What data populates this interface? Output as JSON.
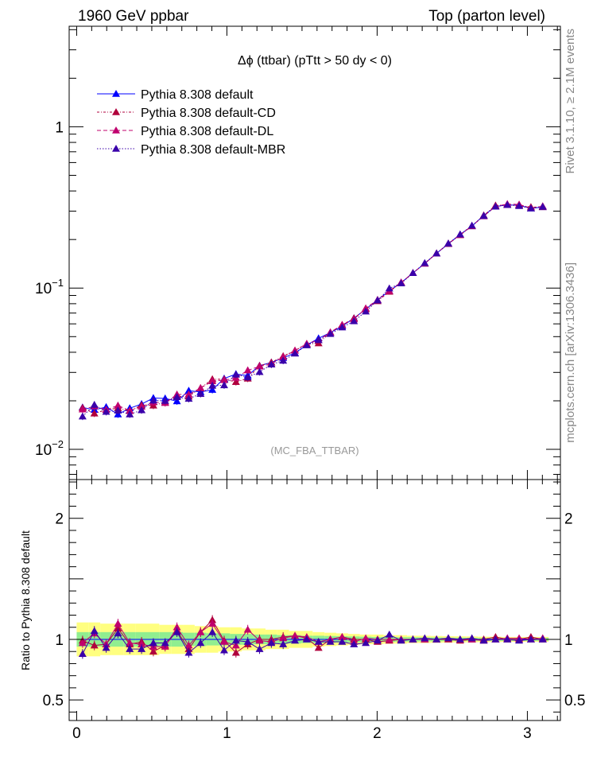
{
  "header": {
    "left": "1960 GeV ppbar",
    "right": "Top (parton level)"
  },
  "side_labels": {
    "rivet": "Rivet 3.1.10, ≥ 2.1M events",
    "mcplots": "mcplots.cern.ch [arXiv:1306.3436]"
  },
  "chart_data": [
    {
      "type": "line",
      "title": "Δϕ (ttbar) (pTtt > 50 dy < 0)",
      "watermark": "(MC_FBA_TTBAR)",
      "yscale": "log",
      "xlim": [
        -0.05,
        3.22
      ],
      "ylim": [
        0.0065,
        4.2
      ],
      "yticks": [
        {
          "v": 0.01,
          "base": "10",
          "exp": "−2"
        },
        {
          "v": 0.1,
          "base": "10",
          "exp": "−1"
        },
        {
          "v": 1,
          "base": "1",
          "exp": ""
        }
      ],
      "legend_position": "top-left",
      "x": [
        0.0393,
        0.1178,
        0.1963,
        0.2749,
        0.3534,
        0.432,
        0.5105,
        0.589,
        0.6676,
        0.7461,
        0.8247,
        0.9032,
        0.9817,
        1.0603,
        1.1388,
        1.2174,
        1.2959,
        1.3744,
        1.453,
        1.5315,
        1.6101,
        1.6886,
        1.7671,
        1.8457,
        1.9242,
        2.0028,
        2.0813,
        2.1598,
        2.2384,
        2.3169,
        2.3955,
        2.474,
        2.5525,
        2.6311,
        2.7096,
        2.7882,
        2.8667,
        2.9452,
        3.0238,
        3.1023
      ],
      "series": [
        {
          "name": "Pythia 8.308 default",
          "color": "#0000ff",
          "dash": "",
          "values": [
            0.0182,
            0.0176,
            0.0183,
            0.0165,
            0.018,
            0.0191,
            0.0208,
            0.0207,
            0.0199,
            0.0231,
            0.0227,
            0.0234,
            0.0275,
            0.0293,
            0.0287,
            0.033,
            0.0346,
            0.0369,
            0.0396,
            0.0444,
            0.0488,
            0.053,
            0.058,
            0.065,
            0.074,
            0.0845,
            0.096,
            0.108,
            0.124,
            0.142,
            0.164,
            0.188,
            0.215,
            0.242,
            0.282,
            0.32,
            0.328,
            0.326,
            0.312,
            0.318
          ]
        },
        {
          "name": "Pythia 8.308 default-CD",
          "color": "#b0003c",
          "dash": "3,2,1,2",
          "values": [
            0.0181,
            0.0167,
            0.0176,
            0.018,
            0.0173,
            0.0188,
            0.0187,
            0.0196,
            0.0213,
            0.0213,
            0.024,
            0.0272,
            0.0272,
            0.0262,
            0.0275,
            0.033,
            0.0346,
            0.0378,
            0.041,
            0.0449,
            0.0455,
            0.053,
            0.059,
            0.065,
            0.074,
            0.083,
            0.095,
            0.108,
            0.124,
            0.142,
            0.164,
            0.188,
            0.213,
            0.242,
            0.282,
            0.325,
            0.328,
            0.325,
            0.318,
            0.318
          ]
        },
        {
          "name": "Pythia 8.308 default-DL",
          "color": "#c0006e",
          "dash": "5,3",
          "values": [
            0.0177,
            0.0185,
            0.0176,
            0.0187,
            0.0174,
            0.0184,
            0.0196,
            0.0194,
            0.0219,
            0.0219,
            0.024,
            0.0265,
            0.0269,
            0.0278,
            0.0309,
            0.0327,
            0.0338,
            0.0374,
            0.041,
            0.0452,
            0.0476,
            0.0532,
            0.0592,
            0.064,
            0.075,
            0.0846,
            0.096,
            0.1085,
            0.124,
            0.142,
            0.164,
            0.189,
            0.214,
            0.243,
            0.279,
            0.321,
            0.332,
            0.33,
            0.313,
            0.322
          ]
        },
        {
          "name": "Pythia 8.308 default-MBR",
          "color": "#3a00aa",
          "dash": "1.5,2",
          "values": [
            0.016,
            0.0189,
            0.0171,
            0.0174,
            0.0165,
            0.0175,
            0.0201,
            0.02,
            0.0211,
            0.0206,
            0.0221,
            0.0248,
            0.025,
            0.0291,
            0.028,
            0.0302,
            0.0336,
            0.0355,
            0.0393,
            0.0442,
            0.0476,
            0.052,
            0.0571,
            0.0623,
            0.0716,
            0.0838,
            0.0996,
            0.107,
            0.124,
            0.143,
            0.164,
            0.189,
            0.215,
            0.244,
            0.28,
            0.32,
            0.328,
            0.323,
            0.312,
            0.319
          ]
        }
      ]
    },
    {
      "type": "line",
      "ylabel": "Ratio to Pythia 8.308 default",
      "xlim": [
        -0.05,
        3.22
      ],
      "ylim": [
        0.33,
        2.32
      ],
      "yticks": [
        0.5,
        1,
        2
      ],
      "xticks": [
        0,
        1,
        2,
        3
      ],
      "band_inner_color": "#90ee90",
      "band_outer_color": "#ffff80",
      "band_inner": [
        0.06,
        0.06,
        0.06,
        0.06,
        0.06,
        0.06,
        0.06,
        0.06,
        0.06,
        0.055,
        0.055,
        0.05,
        0.05,
        0.045,
        0.045,
        0.04,
        0.04,
        0.035,
        0.035,
        0.03,
        0.03,
        0.028,
        0.026,
        0.024,
        0.022,
        0.02,
        0.02,
        0.018,
        0.018,
        0.016,
        0.016,
        0.014,
        0.014,
        0.013,
        0.012,
        0.012,
        0.012,
        0.012,
        0.012,
        0.012
      ],
      "band_outer": [
        0.14,
        0.14,
        0.13,
        0.13,
        0.13,
        0.13,
        0.13,
        0.12,
        0.12,
        0.12,
        0.11,
        0.11,
        0.1,
        0.1,
        0.09,
        0.09,
        0.08,
        0.08,
        0.07,
        0.07,
        0.06,
        0.055,
        0.05,
        0.045,
        0.04,
        0.04,
        0.035,
        0.035,
        0.03,
        0.03,
        0.028,
        0.026,
        0.025,
        0.024,
        0.022,
        0.022,
        0.02,
        0.02,
        0.02,
        0.02
      ],
      "series": [
        {
          "name": "Pythia 8.308 default-CD",
          "color": "#b0003c",
          "values": [
            0.99,
            0.95,
            0.96,
            1.09,
            0.96,
            0.98,
            0.9,
            0.95,
            1.07,
            0.92,
            1.06,
            1.16,
            0.99,
            0.89,
            0.96,
            1.0,
            1.0,
            1.02,
            1.03,
            1.01,
            0.93,
            1.0,
            1.02,
            1.0,
            1.0,
            0.98,
            0.99,
            1.0,
            1.0,
            1.0,
            1.0,
            1.0,
            0.99,
            1.0,
            1.0,
            1.02,
            1.0,
            1.0,
            1.02,
            1.0
          ]
        },
        {
          "name": "Pythia 8.308 default-DL",
          "color": "#c0006e",
          "values": [
            0.97,
            1.05,
            0.96,
            1.13,
            0.97,
            0.96,
            0.94,
            0.94,
            1.1,
            0.95,
            1.06,
            1.13,
            0.98,
            0.95,
            1.08,
            0.99,
            0.98,
            1.01,
            1.03,
            1.02,
            0.98,
            1.0,
            1.02,
            0.98,
            1.01,
            1.0,
            1.0,
            1.0,
            1.0,
            1.0,
            1.0,
            1.01,
            1.0,
            1.0,
            0.99,
            1.0,
            1.01,
            1.01,
            1.0,
            1.01
          ]
        },
        {
          "name": "Pythia 8.308 default-MBR",
          "color": "#3a00aa",
          "values": [
            0.88,
            1.07,
            0.93,
            1.05,
            0.92,
            0.92,
            0.97,
            0.97,
            1.06,
            0.89,
            0.97,
            1.06,
            0.91,
            0.99,
            0.98,
            0.92,
            0.97,
            0.96,
            0.99,
            1.0,
            0.98,
            0.98,
            0.98,
            0.96,
            0.97,
            0.99,
            1.04,
            0.99,
            1.0,
            1.01,
            1.0,
            1.01,
            1.0,
            1.01,
            0.99,
            1.0,
            1.0,
            0.99,
            1.0,
            1.0
          ]
        }
      ]
    }
  ]
}
